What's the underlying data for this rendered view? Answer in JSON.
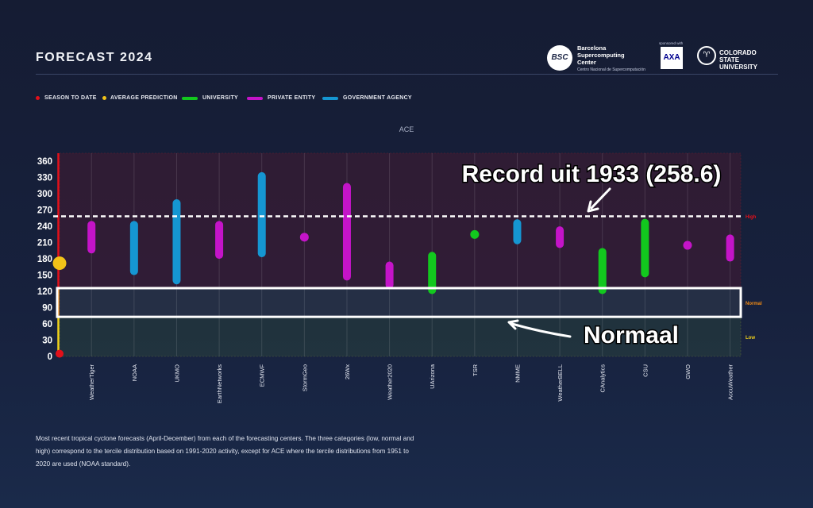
{
  "header": {
    "title": "FORECAST 2024",
    "logos": [
      {
        "name": "Barcelona Supercomputing Center",
        "lines": [
          "Barcelona",
          "Supercomputing",
          "Center"
        ],
        "sub": "Centro Nacional de Supercomputación",
        "mark": "BSC"
      },
      {
        "name": "AXA",
        "caption": "sponsored with",
        "mark": "AXA"
      },
      {
        "name": "Colorado State University",
        "lines": [
          "COLORADO STATE",
          "UNIVERSITY"
        ]
      }
    ]
  },
  "legend": [
    {
      "label": "SEASON TO DATE",
      "color": "#e2101a",
      "shape": "dot"
    },
    {
      "label": "AVERAGE PREDICTION",
      "color": "#f2c318",
      "shape": "dot"
    },
    {
      "label": "UNIVERSITY",
      "color": "#12c81e",
      "shape": "bar"
    },
    {
      "label": "PRIVATE ENTITY",
      "color": "#c414c8",
      "shape": "bar"
    },
    {
      "label": "GOVERNMENT AGENCY",
      "color": "#1596d2",
      "shape": "bar"
    }
  ],
  "chart_data": {
    "type": "range-bar",
    "title": "ACE",
    "ylim": [
      0,
      375
    ],
    "yticks": [
      0,
      30,
      60,
      90,
      120,
      150,
      180,
      210,
      240,
      270,
      300,
      330,
      360
    ],
    "categories": [
      "WeatherTiger",
      "NOAA",
      "UKMO",
      "EarthNetworks",
      "ECMWF",
      "StormGeo",
      "26Wx",
      "Weather2020",
      "UArizona",
      "TSR",
      "NMME",
      "WeatherBELL",
      "CAnalytics",
      "CSU",
      "GWO",
      "AccuWeather"
    ],
    "forecasts": [
      {
        "name": "WeatherTiger",
        "type": "private",
        "low": 190,
        "high": 250
      },
      {
        "name": "NOAA",
        "type": "government",
        "low": 150,
        "high": 250
      },
      {
        "name": "UKMO",
        "type": "government",
        "low": 133,
        "high": 290
      },
      {
        "name": "EarthNetworks",
        "type": "private",
        "low": 180,
        "high": 250
      },
      {
        "name": "ECMWF",
        "type": "government",
        "low": 183,
        "high": 340
      },
      {
        "name": "StormGeo",
        "type": "private",
        "value": 220
      },
      {
        "name": "26Wx",
        "type": "private",
        "low": 140,
        "high": 320
      },
      {
        "name": "Weather2020",
        "type": "private",
        "low": 125,
        "high": 175
      },
      {
        "name": "UArizona",
        "type": "university",
        "low": 115,
        "high": 193
      },
      {
        "name": "TSR",
        "type": "university",
        "value": 225
      },
      {
        "name": "NMME",
        "type": "government",
        "low": 207,
        "high": 253
      },
      {
        "name": "WeatherBELL",
        "type": "private",
        "low": 200,
        "high": 240
      },
      {
        "name": "CAnalytics",
        "type": "university",
        "low": 115,
        "high": 200
      },
      {
        "name": "CSU",
        "type": "university",
        "low": 146,
        "high": 254
      },
      {
        "name": "GWO",
        "type": "private",
        "value": 205
      },
      {
        "name": "AccuWeather",
        "type": "private",
        "low": 175,
        "high": 225
      }
    ],
    "season_to_date": 5,
    "average_prediction": 172,
    "categories_bands": [
      {
        "label": "High",
        "from": 126,
        "to": 375,
        "color": "#e2101a"
      },
      {
        "label": "Normal",
        "from": 73,
        "to": 126,
        "color": "#f08a14"
      },
      {
        "label": "Low",
        "from": 0,
        "to": 73,
        "color": "#f2d21a"
      }
    ],
    "record": {
      "value": 258.6,
      "label": "Record uit 1933 (258.6)"
    },
    "normal_annotation": {
      "label": "Normaal"
    },
    "grid": true
  },
  "caption": "Most recent tropical cyclone forecasts (April-December) from each of the forecasting centers. The three categories (low, normal and high) correspond to the tercile distribution based on 1991-2020 activity, except for ACE where the tercile distributions from 1951 to 2020 are used (NOAA standard).",
  "colors": {
    "university": "#12c81e",
    "private": "#c414c8",
    "government": "#1596d2",
    "season": "#e2101a",
    "average": "#f2c318"
  }
}
